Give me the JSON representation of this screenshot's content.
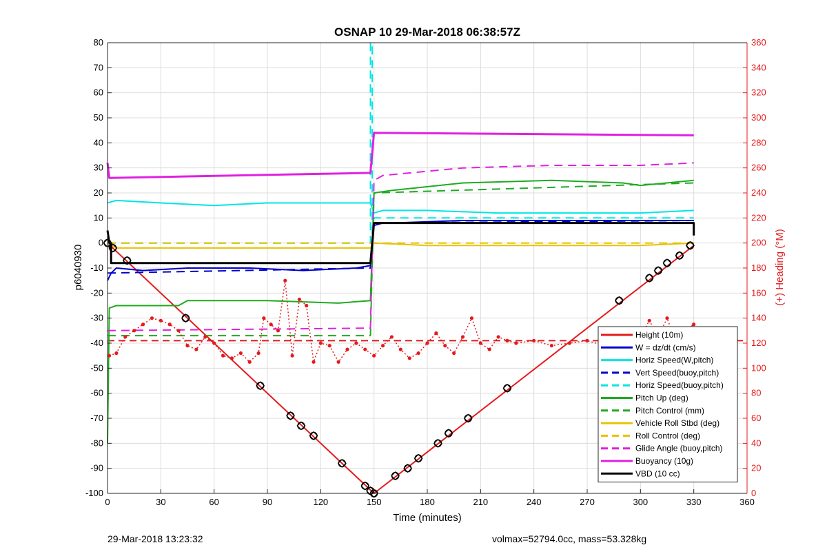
{
  "footer": {
    "left": "29-Mar-2018 13:23:32",
    "right": "volmax=52794.0cc, mass=53.328kg"
  },
  "chart_data": {
    "type": "line",
    "title": "OSNAP 10 29-Mar-2018 06:38:57Z",
    "xlabel": "Time (minutes)",
    "ylabel": "p6040930",
    "y2label": "(+) Heading (°M)",
    "xlim": [
      0,
      360
    ],
    "ylim": [
      -100,
      80
    ],
    "y2lim": [
      0,
      360
    ],
    "xticks": [
      0,
      30,
      60,
      90,
      120,
      150,
      180,
      210,
      240,
      270,
      300,
      330,
      360
    ],
    "yticks": [
      -100,
      -90,
      -80,
      -70,
      -60,
      -50,
      -40,
      -30,
      -20,
      -10,
      0,
      10,
      20,
      30,
      40,
      50,
      60,
      70,
      80
    ],
    "y2ticks": [
      0,
      20,
      40,
      60,
      80,
      100,
      120,
      140,
      160,
      180,
      200,
      220,
      240,
      260,
      280,
      300,
      320,
      340,
      360
    ],
    "grid": true,
    "legend_position": "bottom-right",
    "series": [
      {
        "name": "Height (10m)",
        "color": "#e41a1c",
        "style": "solid",
        "width": 2,
        "x": [
          0,
          150,
          330
        ],
        "y": [
          0,
          -100,
          -1
        ]
      },
      {
        "name": "W = dz/dt (cm/s)",
        "color": "#0000cc",
        "style": "solid",
        "width": 2,
        "x": [
          0,
          2,
          5,
          20,
          45,
          80,
          110,
          140,
          148,
          150,
          155,
          160,
          200,
          250,
          300,
          330
        ],
        "y": [
          -15,
          -12,
          -10,
          -11,
          -10,
          -10,
          -11,
          -10,
          -9,
          7,
          8,
          8,
          9,
          9,
          9,
          9
        ]
      },
      {
        "name": "Horiz Speed(W,pitch)",
        "color": "#00e5e5",
        "style": "solid",
        "width": 2,
        "x": [
          0,
          5,
          30,
          60,
          90,
          120,
          148,
          150,
          155,
          180,
          220,
          260,
          300,
          330
        ],
        "y": [
          16,
          17,
          16,
          15,
          16,
          16,
          16,
          12,
          13,
          13,
          12,
          12,
          12,
          13
        ]
      },
      {
        "name": "Vert Speed(buoy,pitch)",
        "color": "#0000cc",
        "style": "dashed",
        "width": 2,
        "x": [
          0,
          148,
          150,
          155,
          330
        ],
        "y": [
          -12,
          -10,
          8,
          8,
          9
        ]
      },
      {
        "name": "Horiz Speed(buoy,pitch)",
        "color": "#00e5e5",
        "style": "dashed",
        "width": 2,
        "x": [
          0,
          148,
          148,
          149,
          149,
          150,
          330
        ],
        "y": [
          0,
          0,
          80,
          80,
          0,
          10,
          10
        ]
      },
      {
        "name": "Pitch Up (deg)",
        "color": "#1faa1f",
        "style": "solid",
        "width": 2,
        "x": [
          0,
          1,
          5,
          40,
          45,
          90,
          130,
          148,
          150,
          160,
          200,
          250,
          290,
          300,
          330
        ],
        "y": [
          -80,
          -26,
          -25,
          -25,
          -23,
          -23,
          -24,
          -23,
          20,
          21,
          24,
          25,
          24,
          23,
          25
        ]
      },
      {
        "name": "Pitch Control (mm)",
        "color": "#1faa1f",
        "style": "dashed",
        "width": 2,
        "x": [
          0,
          148,
          150,
          330
        ],
        "y": [
          -37,
          -37,
          20,
          24
        ]
      },
      {
        "name": "Vehicle Roll Stbd (deg)",
        "color": "#e6c300",
        "style": "solid",
        "width": 2,
        "x": [
          0,
          5,
          30,
          60,
          90,
          120,
          148,
          150,
          180,
          240,
          300,
          330
        ],
        "y": [
          0,
          -2,
          -2,
          -2,
          -2,
          -2,
          -2,
          0,
          -1,
          -1,
          -1,
          0
        ]
      },
      {
        "name": "Roll Control (deg)",
        "color": "#e6c300",
        "style": "dashed",
        "width": 2,
        "x": [
          0,
          148,
          150,
          330
        ],
        "y": [
          0,
          0,
          0,
          0
        ]
      },
      {
        "name": "Glide Angle (buoy,pitch)",
        "color": "#e020e0",
        "style": "dashed",
        "width": 2,
        "x": [
          0,
          148,
          150,
          155,
          200,
          250,
          300,
          330
        ],
        "y": [
          -35,
          -34,
          25,
          27,
          30,
          31,
          31,
          32
        ]
      },
      {
        "name": "Buoyancy (10g)",
        "color": "#e020e0",
        "style": "solid",
        "width": 3,
        "x": [
          0,
          1,
          148,
          150,
          330
        ],
        "y": [
          32,
          26,
          28,
          44,
          43
        ]
      },
      {
        "name": "VBD (10 cc)",
        "color": "#000000",
        "style": "solid",
        "width": 3,
        "x": [
          0,
          1,
          2,
          2,
          148,
          150,
          155,
          330,
          330
        ],
        "y": [
          5,
          0,
          0,
          -8,
          -8,
          8,
          8,
          8,
          3
        ]
      }
    ],
    "heading_series": {
      "name": "Heading",
      "color": "#e41a1c",
      "axis": "right",
      "x": [
        1,
        5,
        10,
        15,
        20,
        25,
        30,
        35,
        40,
        45,
        50,
        55,
        60,
        65,
        70,
        75,
        80,
        85,
        88,
        92,
        96,
        100,
        104,
        108,
        112,
        116,
        120,
        125,
        130,
        135,
        140,
        145,
        150,
        155,
        160,
        165,
        170,
        175,
        180,
        185,
        190,
        195,
        200,
        205,
        210,
        215,
        220,
        225,
        230,
        240,
        250,
        260,
        270,
        280,
        290,
        300,
        305,
        310,
        315,
        320,
        325,
        330
      ],
      "y": [
        110,
        112,
        125,
        130,
        135,
        140,
        138,
        135,
        130,
        118,
        115,
        125,
        120,
        110,
        108,
        112,
        105,
        112,
        140,
        135,
        130,
        170,
        110,
        155,
        150,
        105,
        120,
        118,
        105,
        115,
        120,
        115,
        110,
        118,
        125,
        115,
        108,
        112,
        120,
        128,
        118,
        112,
        125,
        140,
        120,
        115,
        125,
        122,
        120,
        122,
        118,
        120,
        122,
        118,
        120,
        125,
        138,
        125,
        140,
        120,
        130,
        135
      ]
    },
    "markers": {
      "name": "Height fix markers",
      "color": "#000000",
      "x": [
        0,
        3,
        11,
        44,
        86,
        103,
        109,
        116,
        132,
        145,
        148,
        150,
        162,
        169,
        175,
        186,
        192,
        203,
        225,
        288,
        305,
        310,
        315,
        322,
        328
      ],
      "y": [
        0,
        -2,
        -7,
        -30,
        -57,
        -69,
        -73,
        -77,
        -88,
        -97,
        -99,
        -100,
        -93,
        -90,
        -86,
        -80,
        -76,
        -70,
        -58,
        -23,
        -14,
        -11,
        -8,
        -5,
        -1
      ]
    },
    "reference_line": {
      "color": "#e41a1c",
      "style": "dashed",
      "y2": 122
    }
  }
}
